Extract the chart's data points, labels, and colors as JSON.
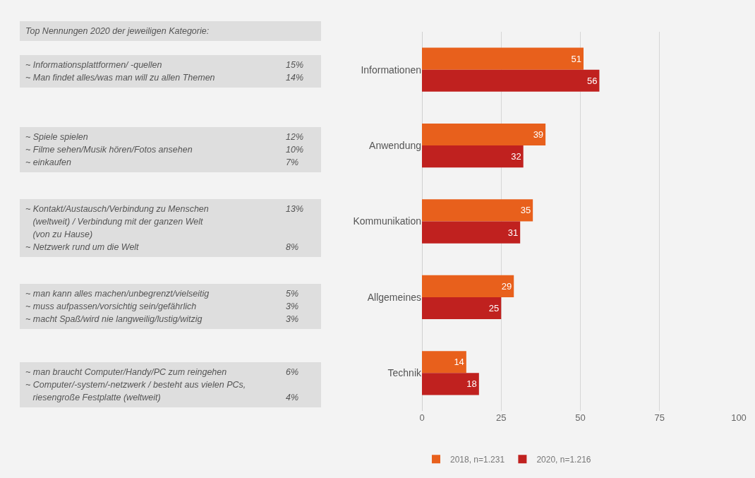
{
  "chart_data": {
    "type": "bar",
    "orientation": "horizontal",
    "categories": [
      "Informationen",
      "Anwendung",
      "Kommunikation",
      "Allgemeines",
      "Technik"
    ],
    "series": [
      {
        "name": "2018, n=1.231",
        "color": "#e8601c",
        "values": [
          51,
          39,
          35,
          29,
          14
        ]
      },
      {
        "name": "2020, n=1.216",
        "color": "#c0211f",
        "values": [
          56,
          32,
          31,
          25,
          18
        ]
      }
    ],
    "xlim": [
      0,
      100
    ],
    "xticks": [
      0,
      25,
      50,
      75,
      100
    ],
    "grid": "x",
    "legend": "bottom",
    "data_labels": true,
    "annotations": [
      "Top Nennungen 2020 der jeweiligen Kategorie:",
      "~ Informationsplattformen/ -quellen\t15%\n~ Man findet alles/was man will zu allen Themen\t14%",
      "~ Spiele spielen\t12%\n~ Filme sehen/Musik hören/Fotos ansehen\t10%\n~ einkaufen\t7%",
      "~ Kontakt/Austausch/Verbindung zu Menschen\t13%\n   (weltweit) / Verbindung mit der ganzen Welt\t\n   (von zu Hause)\t\n~ Netzwerk rund um die Welt\t8%",
      "~ man kann alles machen/unbegrenzt/vielseitig\t5%\n~ muss aufpassen/vorsichtig sein/gefährlich\t3%\n~ macht Spaß/wird nie langweilig/lustig/witzig\t3%",
      "~ man braucht Computer/Handy/PC zum reingehen\t6%\n~ Computer/-system/-netzwerk / besteht aus vielen PCs,\t\n   riesengroße Festplatte (weltweit)\t4%"
    ]
  }
}
